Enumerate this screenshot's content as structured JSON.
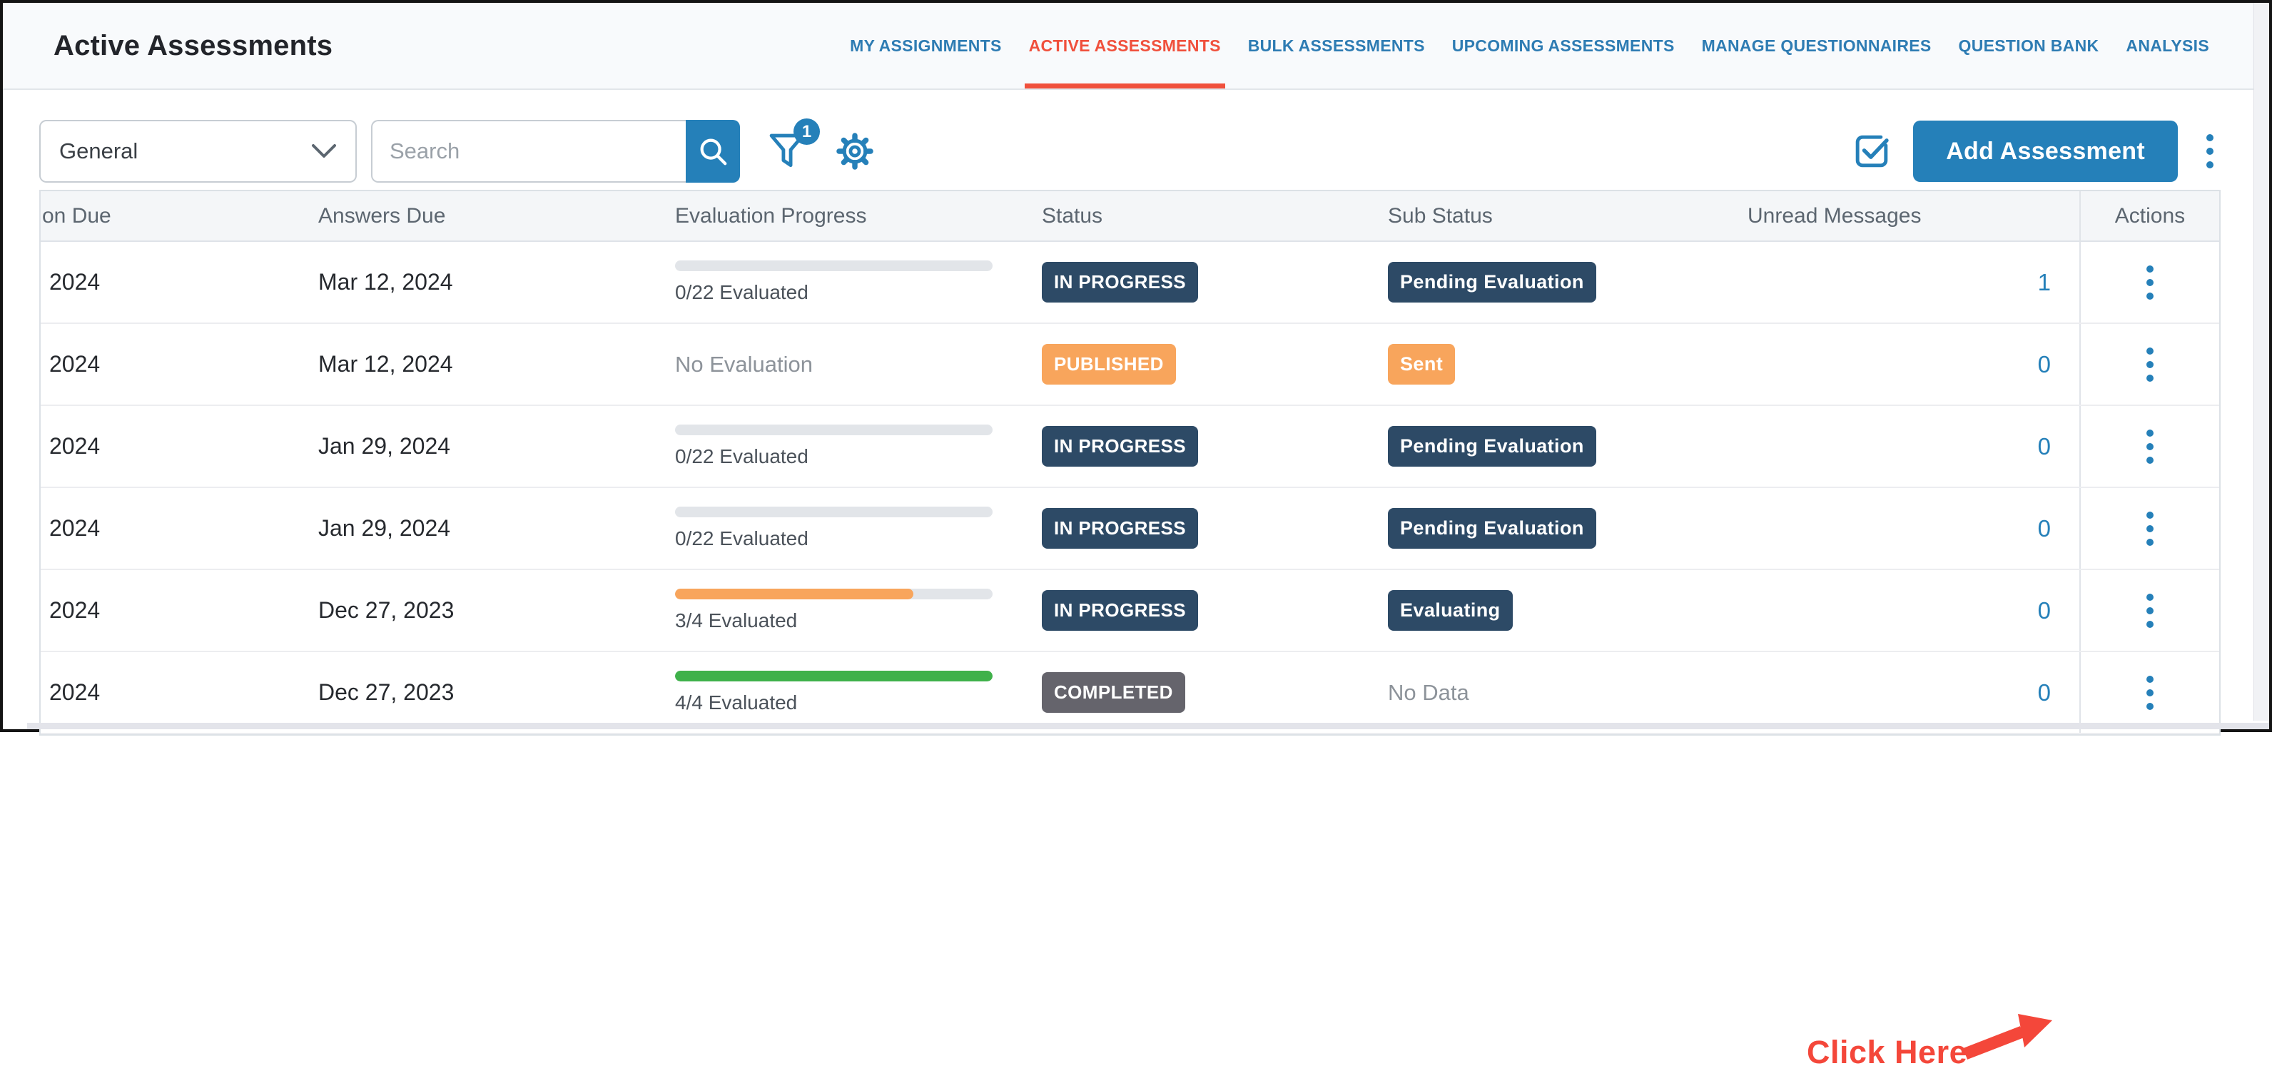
{
  "page": {
    "title": "Active Assessments"
  },
  "nav": {
    "tabs": [
      {
        "label": "MY ASSIGNMENTS",
        "active": false
      },
      {
        "label": "ACTIVE ASSESSMENTS",
        "active": true
      },
      {
        "label": "BULK ASSESSMENTS",
        "active": false
      },
      {
        "label": "UPCOMING ASSESSMENTS",
        "active": false
      },
      {
        "label": "MANAGE QUESTIONNAIRES",
        "active": false
      },
      {
        "label": "QUESTION BANK",
        "active": false
      },
      {
        "label": "ANALYSIS",
        "active": false
      }
    ]
  },
  "toolbar": {
    "category_select": {
      "value": "General"
    },
    "search": {
      "placeholder": "Search"
    },
    "filter_badge_count": "1",
    "add_button_label": "Add Assessment"
  },
  "table": {
    "columns": [
      "on Due",
      "Answers Due",
      "Evaluation Progress",
      "Status",
      "Sub Status",
      "Unread Messages",
      "Actions"
    ],
    "rows": [
      {
        "col1": "2024",
        "answers_due": "Mar 12, 2024",
        "progress": {
          "label": "0/22 Evaluated",
          "percent": 0,
          "color": "track"
        },
        "status": {
          "label": "IN PROGRESS",
          "variant": "navy"
        },
        "sub_status": {
          "label": "Pending Evaluation",
          "variant": "navy"
        },
        "unread": "1"
      },
      {
        "col1": "2024",
        "answers_due": "Mar 12, 2024",
        "progress": {
          "label": "No Evaluation",
          "percent": null,
          "color": null
        },
        "status": {
          "label": "PUBLISHED",
          "variant": "orange"
        },
        "sub_status": {
          "label": "Sent",
          "variant": "orange"
        },
        "unread": "0"
      },
      {
        "col1": "2024",
        "answers_due": "Jan 29, 2024",
        "progress": {
          "label": "0/22 Evaluated",
          "percent": 0,
          "color": "track"
        },
        "status": {
          "label": "IN PROGRESS",
          "variant": "navy"
        },
        "sub_status": {
          "label": "Pending Evaluation",
          "variant": "navy"
        },
        "unread": "0"
      },
      {
        "col1": "2024",
        "answers_due": "Jan 29, 2024",
        "progress": {
          "label": "0/22 Evaluated",
          "percent": 0,
          "color": "track"
        },
        "status": {
          "label": "IN PROGRESS",
          "variant": "navy"
        },
        "sub_status": {
          "label": "Pending Evaluation",
          "variant": "navy"
        },
        "unread": "0"
      },
      {
        "col1": "2024",
        "answers_due": "Dec 27, 2023",
        "progress": {
          "label": "3/4 Evaluated",
          "percent": 75,
          "color": "orange"
        },
        "status": {
          "label": "IN PROGRESS",
          "variant": "navy"
        },
        "sub_status": {
          "label": "Evaluating",
          "variant": "navy"
        },
        "unread": "0"
      },
      {
        "col1": "2024",
        "answers_due": "Dec 27, 2023",
        "progress": {
          "label": "4/4 Evaluated",
          "percent": 100,
          "color": "green"
        },
        "status": {
          "label": "COMPLETED",
          "variant": "gray"
        },
        "sub_status": {
          "label": "No Data",
          "variant": "text"
        },
        "unread": "0"
      }
    ]
  },
  "annotation": {
    "label": "Click Here"
  },
  "colors": {
    "navy": "#2d4a66",
    "orange": "#f8a55c",
    "gray": "#65646c",
    "green": "#3fb14a",
    "track": "#e2e5e9",
    "blue": "#2580b9",
    "red": "#f4473a"
  }
}
